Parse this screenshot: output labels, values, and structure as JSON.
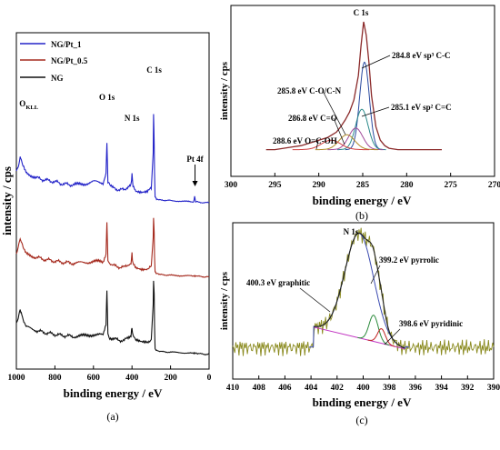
{
  "chart_data": [
    {
      "panel": "a",
      "type": "line",
      "caption": "(a)",
      "xlabel": "binding energy / eV",
      "ylabel": "intensity / cps",
      "xlim": [
        1000,
        0
      ],
      "xticks": [
        1000,
        800,
        600,
        400,
        200,
        0
      ],
      "legend_position": "top-left",
      "series": [
        {
          "name": "NG/Pt_1",
          "color": "#2323c8",
          "offset": 7.2,
          "pt_tail": true,
          "x": [
            1000,
            990,
            980,
            975,
            965,
            950,
            900,
            860,
            800,
            760,
            700,
            650,
            600,
            550,
            535,
            530,
            525,
            515,
            500,
            480,
            440,
            420,
            405,
            400,
            395,
            380,
            350,
            320,
            300,
            290,
            288,
            285,
            283,
            280,
            275,
            270,
            260,
            240,
            200,
            150,
            100,
            80,
            75,
            70,
            60,
            40,
            20,
            0
          ],
          "y": [
            1.7,
            1.9,
            2.3,
            2.25,
            1.9,
            1.6,
            1.35,
            1.25,
            1.15,
            1.05,
            1.0,
            1.05,
            1.15,
            1.1,
            1.6,
            3.0,
            1.1,
            0.95,
            0.85,
            0.8,
            0.75,
            0.95,
            1.05,
            1.5,
            1.0,
            0.75,
            0.7,
            0.72,
            0.8,
            2.5,
            4.4,
            3.0,
            1.6,
            0.45,
            0.35,
            0.3,
            0.28,
            0.27,
            0.25,
            0.22,
            0.2,
            0.2,
            0.45,
            0.2,
            0.18,
            0.16,
            0.15,
            0.15
          ]
        },
        {
          "name": "NG/Pt_0.5",
          "color": "#a52a1e",
          "offset": 3.7,
          "pt_tail": false,
          "x": [
            1000,
            990,
            980,
            975,
            965,
            950,
            900,
            860,
            800,
            760,
            700,
            650,
            600,
            550,
            535,
            530,
            525,
            515,
            500,
            480,
            440,
            420,
            405,
            400,
            395,
            380,
            350,
            320,
            300,
            290,
            288,
            285,
            283,
            280,
            275,
            270,
            260,
            240,
            200,
            150,
            100,
            80,
            75,
            70,
            60,
            40,
            20,
            0
          ],
          "y": [
            1.3,
            1.5,
            1.9,
            1.8,
            1.45,
            1.2,
            1.05,
            0.95,
            0.85,
            0.8,
            0.75,
            0.78,
            0.85,
            0.8,
            1.2,
            2.7,
            0.85,
            0.7,
            0.65,
            0.6,
            0.55,
            0.7,
            0.8,
            1.2,
            0.75,
            0.55,
            0.5,
            0.52,
            0.6,
            2.0,
            2.9,
            2.2,
            1.1,
            0.35,
            0.28,
            0.25,
            0.22,
            0.2,
            0.18,
            0.16,
            0.15,
            0.15,
            0.15,
            0.14,
            0.13,
            0.12,
            0.1,
            0.1
          ]
        },
        {
          "name": "NG",
          "color": "#111111",
          "offset": 0.0,
          "pt_tail": false,
          "x": [
            1000,
            990,
            980,
            975,
            965,
            950,
            900,
            860,
            800,
            760,
            700,
            650,
            600,
            550,
            535,
            530,
            525,
            515,
            500,
            480,
            440,
            420,
            405,
            400,
            395,
            380,
            350,
            320,
            300,
            290,
            288,
            285,
            283,
            280,
            275,
            270,
            260,
            240,
            200,
            150,
            100,
            80,
            75,
            70,
            60,
            40,
            20,
            0
          ],
          "y": [
            1.6,
            1.8,
            2.2,
            2.1,
            1.7,
            1.4,
            1.25,
            1.15,
            1.05,
            1.0,
            0.95,
            0.98,
            1.05,
            1.0,
            1.5,
            3.2,
            1.0,
            0.9,
            0.85,
            0.8,
            0.75,
            0.9,
            1.0,
            1.4,
            0.95,
            0.75,
            0.7,
            0.72,
            0.8,
            2.5,
            3.6,
            3.0,
            1.5,
            0.35,
            0.3,
            0.28,
            0.25,
            0.22,
            0.2,
            0.18,
            0.15,
            0.15,
            0.15,
            0.14,
            0.13,
            0.12,
            0.1,
            0.1
          ]
        }
      ],
      "annotations": [
        {
          "text": "O",
          "sub": "KLL",
          "x": 975
        },
        {
          "text": "O 1s",
          "x": 530
        },
        {
          "text": "N 1s",
          "x": 400
        },
        {
          "text": "C 1s",
          "x": 285
        },
        {
          "text": "Pt 4f",
          "x": 73
        }
      ]
    },
    {
      "panel": "b",
      "type": "line",
      "caption": "(b)",
      "title": "C 1s",
      "xlabel": "binding energy / eV",
      "ylabel": "intensity / cps",
      "xlim": [
        300,
        270
      ],
      "xticks": [
        300,
        295,
        290,
        285,
        280,
        275,
        270
      ],
      "envelope": {
        "color": "#8b2a2a",
        "x": [
          296,
          295,
          294,
          293,
          292,
          291,
          290,
          289,
          288.5,
          288,
          287.5,
          287,
          286.5,
          286,
          285.5,
          285.2,
          284.9,
          284.6,
          284.3,
          284,
          283.5,
          283,
          282.5,
          282,
          281,
          280,
          278,
          276
        ],
        "y": [
          0.05,
          0.05,
          0.06,
          0.07,
          0.08,
          0.1,
          0.12,
          0.14,
          0.16,
          0.18,
          0.22,
          0.27,
          0.33,
          0.42,
          0.6,
          0.82,
          1.0,
          0.9,
          0.7,
          0.45,
          0.22,
          0.12,
          0.08,
          0.06,
          0.05,
          0.05,
          0.05,
          0.05
        ]
      },
      "components": [
        {
          "label": "284.8 eV sp³ C-C",
          "center": 284.8,
          "amp": 0.65,
          "width": 0.55,
          "color": "#2a4aa0"
        },
        {
          "label": "285.1 eV sp² C=C",
          "center": 285.1,
          "amp": 0.3,
          "width": 0.7,
          "color": "#2a8a8a"
        },
        {
          "label": "285.8 eV C-O/C-N",
          "center": 285.8,
          "amp": 0.16,
          "width": 0.8,
          "color": "#a04a9a"
        },
        {
          "label": "286.8 eV C=O",
          "center": 286.8,
          "amp": 0.11,
          "width": 0.9,
          "color": "#b08a2a"
        },
        {
          "label": "288.6 eV O=C-OH",
          "center": 288.6,
          "amp": 0.07,
          "width": 1.1,
          "color": "#d04040"
        }
      ]
    },
    {
      "panel": "c",
      "type": "line",
      "caption": "(c)",
      "title": "N 1s",
      "xlabel": "binding energy / eV",
      "ylabel": "intensity / cps",
      "xlim": [
        410,
        390
      ],
      "xticks": [
        410,
        408,
        406,
        404,
        402,
        400,
        398,
        396,
        394,
        392,
        390
      ],
      "raw_color": "#8a8a1e",
      "components": [
        {
          "label": "400.3 eV graphitic",
          "center": 400.3,
          "amp": 0.72,
          "width": 1.1,
          "color": "#3a4ab0"
        },
        {
          "label": "399.2 eV pyrrolic",
          "center": 399.2,
          "amp": 0.18,
          "width": 0.35,
          "color": "#2a8a3a"
        },
        {
          "label": "398.6 eV pyridinic",
          "center": 398.6,
          "amp": 0.1,
          "width": 0.3,
          "color": "#c02020"
        }
      ],
      "background": {
        "color": "#c030c0",
        "x": [
          403.8,
          396.8
        ],
        "y": [
          0.22,
          0.07
        ]
      }
    }
  ]
}
